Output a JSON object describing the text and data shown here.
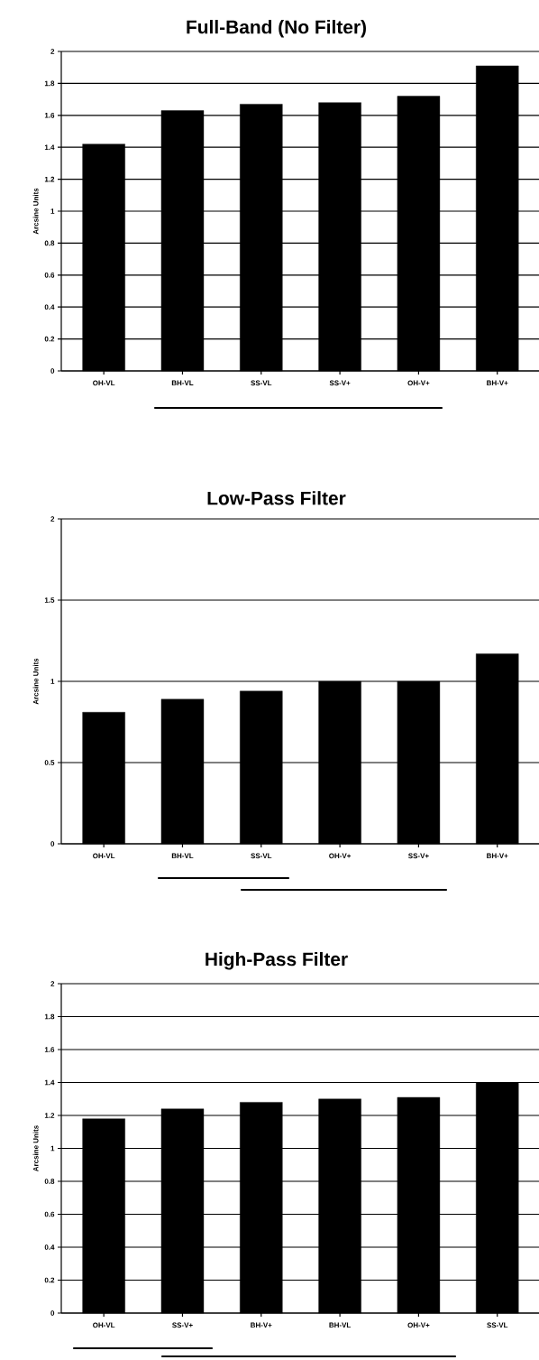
{
  "chart_data": [
    {
      "type": "bar",
      "title": "Full-Band (No Filter)",
      "ylabel": "Arcsine Units",
      "categories": [
        "OH-VL",
        "BH-VL",
        "SS-VL",
        "SS-V+",
        "OH-V+",
        "BH-V+"
      ],
      "values": [
        1.42,
        1.63,
        1.67,
        1.68,
        1.72,
        1.91
      ],
      "color": "#000000",
      "ylim": [
        0,
        2
      ],
      "yticks": [
        0,
        0.2,
        0.4,
        0.6,
        0.8,
        1,
        1.2,
        1.4,
        1.6,
        1.8,
        2
      ],
      "grid": "y"
    },
    {
      "type": "bar",
      "title": "Low-Pass Filter",
      "ylabel": "Arcsine Units",
      "categories": [
        "OH-VL",
        "BH-VL",
        "SS-VL",
        "OH-V+",
        "SS-V+",
        "BH-V+"
      ],
      "values": [
        0.81,
        0.89,
        0.94,
        1.0,
        1.0,
        1.17
      ],
      "color": "#000000",
      "ylim": [
        0,
        2
      ],
      "yticks": [
        0,
        0.5,
        1,
        1.5,
        2
      ],
      "grid": "y"
    },
    {
      "type": "bar",
      "title": "High-Pass Filter",
      "ylabel": "Arcsine Units",
      "categories": [
        "OH-VL",
        "SS-V+",
        "BH-V+",
        "BH-VL",
        "OH-V+",
        "SS-VL"
      ],
      "values": [
        1.18,
        1.24,
        1.28,
        1.3,
        1.31,
        1.4
      ],
      "color": "#000000",
      "ylim": [
        0,
        2
      ],
      "yticks": [
        0,
        0.2,
        0.4,
        0.6,
        0.8,
        1,
        1.2,
        1.4,
        1.6,
        1.8,
        2
      ],
      "grid": "y"
    }
  ]
}
